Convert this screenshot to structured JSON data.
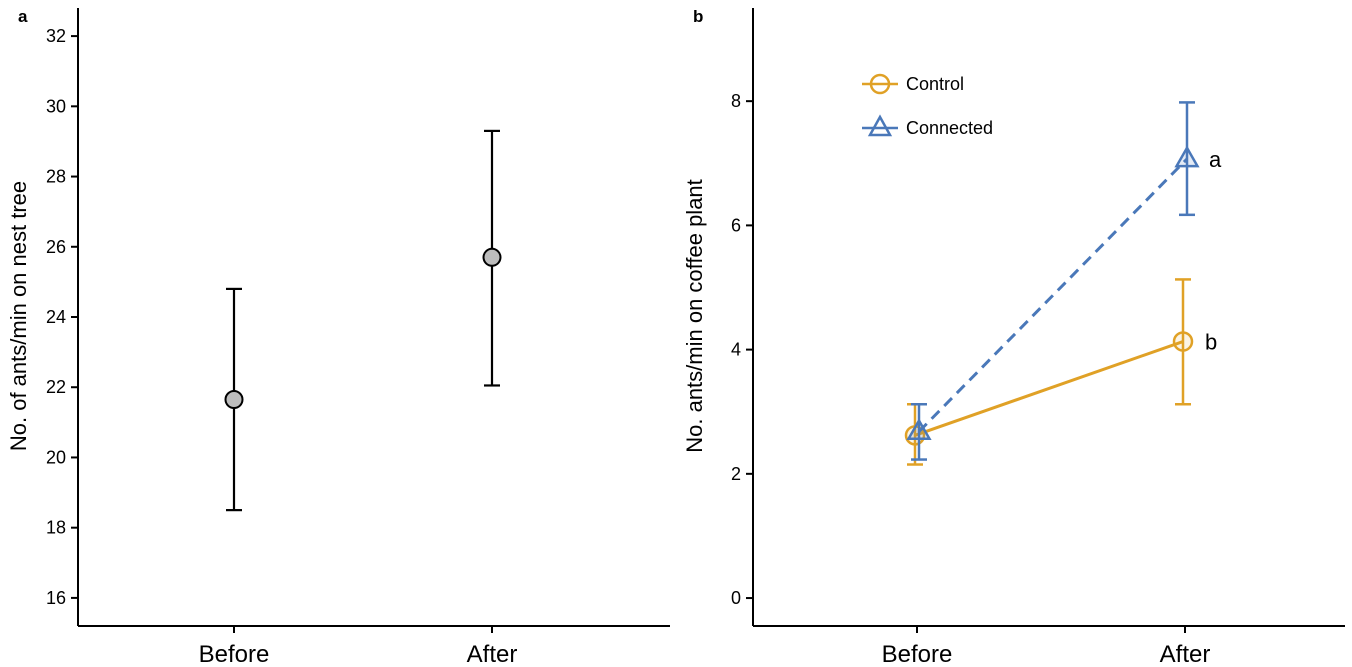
{
  "chart_data": [
    {
      "panel": "a",
      "type": "scatter",
      "categories": [
        "Before",
        "After"
      ],
      "ylabel": "No. of ants/min on nest tree",
      "xlabel": "",
      "ylim": [
        15.2,
        32.8
      ],
      "yticks": [
        16,
        18,
        20,
        22,
        24,
        26,
        28,
        30,
        32
      ],
      "grid": false,
      "series": [
        {
          "values": [
            21.65,
            25.7
          ],
          "lower": [
            18.5,
            22.05
          ],
          "upper": [
            24.8,
            29.3
          ],
          "color": "#000000",
          "fill": "#bdbdbd",
          "marker": "circle"
        }
      ]
    },
    {
      "panel": "b",
      "type": "line",
      "categories": [
        "Before",
        "After"
      ],
      "ylabel": "No. ants/min on coffee plant",
      "xlabel": "",
      "ylim": [
        -0.45,
        9.5
      ],
      "yticks": [
        0,
        2,
        4,
        6,
        8
      ],
      "grid": false,
      "legend_position": "top-left",
      "series": [
        {
          "name": "Control",
          "values": [
            2.62,
            4.13
          ],
          "lower": [
            2.15,
            3.12
          ],
          "upper": [
            3.12,
            5.13
          ],
          "color": "#e0a126",
          "marker": "circle",
          "linestyle": "solid",
          "annotation": "b"
        },
        {
          "name": "Connected",
          "values": [
            2.68,
            7.07
          ],
          "lower": [
            2.23,
            6.17
          ],
          "upper": [
            3.12,
            7.98
          ],
          "color": "#4a78b9",
          "marker": "triangle",
          "linestyle": "dashed",
          "annotation": "a"
        }
      ]
    }
  ]
}
